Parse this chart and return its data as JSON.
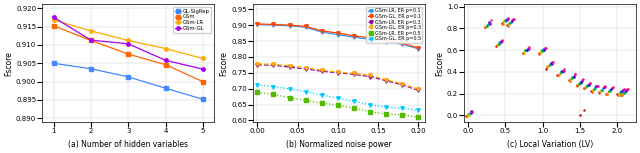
{
  "fig_width": 6.4,
  "fig_height": 1.53,
  "subplot_a": {
    "xlabel": "(a) Number of hidden variables",
    "ylabel": "Fscore",
    "xlim": [
      0.7,
      5.3
    ],
    "ylim": [
      0.889,
      0.921
    ],
    "yticks": [
      0.89,
      0.895,
      0.9,
      0.905,
      0.91,
      0.915,
      0.92
    ],
    "xticks": [
      1,
      2,
      3,
      4,
      5
    ],
    "series": [
      {
        "label": "GL-SigRep",
        "color": "#4488FF",
        "marker": "s",
        "x": [
          1,
          2,
          3,
          4,
          5
        ],
        "y": [
          0.905,
          0.9035,
          0.9013,
          0.8982,
          0.8952
        ]
      },
      {
        "label": "GSm",
        "color": "#FF6600",
        "marker": "s",
        "x": [
          1,
          2,
          3,
          4,
          5
        ],
        "y": [
          0.9152,
          0.9112,
          0.9075,
          0.9046,
          0.9
        ]
      },
      {
        "label": "GSm-LR",
        "color": "#FFAA00",
        "marker": "o",
        "x": [
          1,
          2,
          3,
          4,
          5
        ],
        "y": [
          0.9168,
          0.9138,
          0.9112,
          0.909,
          0.9063
        ]
      },
      {
        "label": "GSm-GL",
        "color": "#AA00EE",
        "marker": "o",
        "x": [
          1,
          2,
          3,
          4,
          5
        ],
        "y": [
          0.9175,
          0.9113,
          0.9103,
          0.9058,
          0.9034
        ]
      }
    ]
  },
  "subplot_b": {
    "xlabel": "(b) Normalized noise power",
    "ylabel": "Fscore",
    "xlim": [
      -0.005,
      0.208
    ],
    "ylim": [
      0.595,
      0.965
    ],
    "yticks": [
      0.6,
      0.65,
      0.7,
      0.75,
      0.8,
      0.85,
      0.9,
      0.95
    ],
    "xticks": [
      0,
      0.05,
      0.1,
      0.15,
      0.2
    ],
    "series": [
      {
        "label": "GSm-LR, ER p=0.1",
        "color": "#3399FF",
        "marker": "v",
        "linestyle": "-",
        "x": [
          0,
          0.02,
          0.04,
          0.06,
          0.08,
          0.1,
          0.12,
          0.14,
          0.16,
          0.18,
          0.2
        ],
        "y": [
          0.902,
          0.9,
          0.898,
          0.893,
          0.878,
          0.87,
          0.862,
          0.855,
          0.847,
          0.84,
          0.825
        ]
      },
      {
        "label": "GSm-GL, ER p=0.1",
        "color": "#FF4400",
        "marker": "v",
        "linestyle": "-",
        "x": [
          0,
          0.02,
          0.04,
          0.06,
          0.08,
          0.1,
          0.12,
          0.14,
          0.16,
          0.18,
          0.2
        ],
        "y": [
          0.904,
          0.902,
          0.9,
          0.896,
          0.882,
          0.875,
          0.866,
          0.86,
          0.851,
          0.843,
          0.828
        ]
      },
      {
        "label": "GSm-LR, ER p=0.3",
        "color": "#8800AA",
        "marker": "v",
        "linestyle": "--",
        "x": [
          0,
          0.02,
          0.04,
          0.06,
          0.08,
          0.1,
          0.12,
          0.14,
          0.16,
          0.18,
          0.2
        ],
        "y": [
          0.775,
          0.774,
          0.768,
          0.762,
          0.755,
          0.75,
          0.745,
          0.738,
          0.725,
          0.712,
          0.695
        ]
      },
      {
        "label": "GSm-GL, ER p=0.3",
        "color": "#FFAA00",
        "marker": "v",
        "linestyle": "--",
        "x": [
          0,
          0.02,
          0.04,
          0.06,
          0.08,
          0.1,
          0.12,
          0.14,
          0.16,
          0.18,
          0.2
        ],
        "y": [
          0.778,
          0.777,
          0.772,
          0.766,
          0.758,
          0.752,
          0.748,
          0.742,
          0.728,
          0.715,
          0.698
        ]
      },
      {
        "label": "GSm-LR, ER p=0.5",
        "color": "#55BB00",
        "marker": "s",
        "linestyle": ":",
        "x": [
          0,
          0.02,
          0.04,
          0.06,
          0.08,
          0.1,
          0.12,
          0.14,
          0.16,
          0.18,
          0.2
        ],
        "y": [
          0.688,
          0.682,
          0.672,
          0.663,
          0.655,
          0.648,
          0.638,
          0.628,
          0.62,
          0.618,
          0.61
        ]
      },
      {
        "label": "GSm-GL, ER p=0.5",
        "color": "#00CCFF",
        "marker": "v",
        "linestyle": ":",
        "x": [
          0,
          0.02,
          0.04,
          0.06,
          0.08,
          0.1,
          0.12,
          0.14,
          0.16,
          0.18,
          0.2
        ],
        "y": [
          0.712,
          0.706,
          0.7,
          0.69,
          0.68,
          0.67,
          0.66,
          0.65,
          0.642,
          0.638,
          0.632
        ]
      }
    ]
  },
  "subplot_c": {
    "xlabel": "(c) Local Variation (LV)",
    "ylabel": "Fscore",
    "xlim": [
      -0.05,
      2.25
    ],
    "ylim": [
      -0.06,
      1.02
    ],
    "yticks": [
      0,
      0.2,
      0.4,
      0.6,
      0.8,
      1.0
    ],
    "xticks": [
      0,
      0.5,
      1.0,
      1.5,
      2.0
    ],
    "colors": [
      "#CC0000",
      "#FF4400",
      "#FF8800",
      "#DDCC00",
      "#88BB00",
      "#00AA00",
      "#00AAAA",
      "#0088FF",
      "#0000CC",
      "#8800CC",
      "#CC00CC",
      "#FF0077"
    ],
    "lv_positions": [
      0.02,
      0.27,
      0.42,
      0.5,
      0.57,
      0.78,
      1.0,
      1.1,
      1.25,
      1.4,
      1.5,
      1.6,
      1.7,
      1.8,
      1.9,
      2.05,
      2.1
    ],
    "fscore_at_lv": [
      0.02,
      0.84,
      0.67,
      0.87,
      0.86,
      0.6,
      0.6,
      0.47,
      0.4,
      0.35,
      0.3,
      0.28,
      0.25,
      0.24,
      0.23,
      0.22,
      0.22
    ],
    "special_points": [
      {
        "lv": 0.02,
        "fscore": 0.0,
        "color": "#DDCC00"
      },
      {
        "lv": 1.5,
        "fscore": 0.0,
        "color": "#CC0000"
      },
      {
        "lv": 1.55,
        "fscore": 0.055,
        "color": "#CC0000"
      }
    ]
  }
}
